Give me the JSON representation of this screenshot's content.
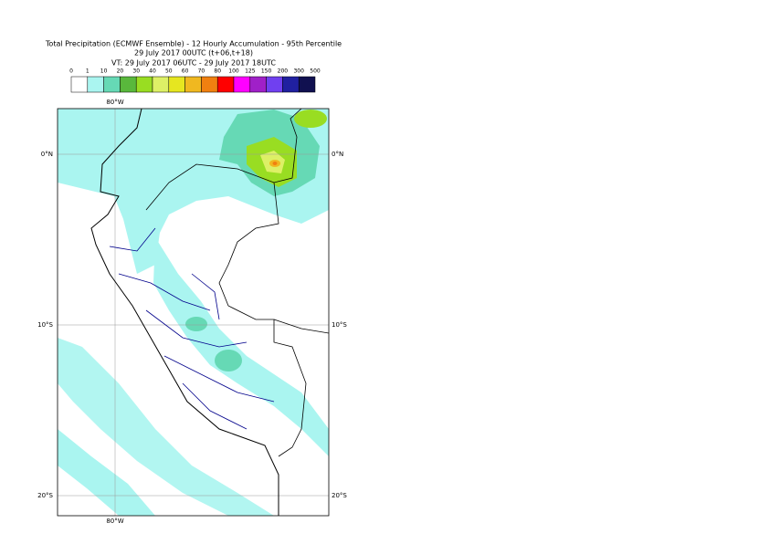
{
  "title": [
    "Total Precipitation (ECMWF Ensemble) - 12 Hourly Accumulation - 95th Percentile",
    "29 July 2017 00UTC (t+06,t+18)",
    "VT: 29 July 2017 06UTC - 29 July 2017 18UTC"
  ],
  "legend": {
    "labels": [
      "0",
      "1",
      "10",
      "20",
      "30",
      "40",
      "50",
      "60",
      "70",
      "80",
      "100",
      "125",
      "150",
      "200",
      "300",
      "500"
    ],
    "colors": [
      "#ffffff",
      "#aaf5f0",
      "#66d9b5",
      "#59b83c",
      "#99dd22",
      "#ddf066",
      "#e6e620",
      "#f0b820",
      "#f08010",
      "#ff0000",
      "#ff00ff",
      "#a020c8",
      "#7040f0",
      "#2020a0",
      "#101050"
    ]
  },
  "map": {
    "top_labels": [
      "80°W"
    ],
    "bottom_labels": [
      "80°W"
    ],
    "left_labels": [
      "0°N",
      "10°S",
      "20°S"
    ],
    "right_labels": [
      "0°N",
      "10°S",
      "20°S"
    ]
  }
}
